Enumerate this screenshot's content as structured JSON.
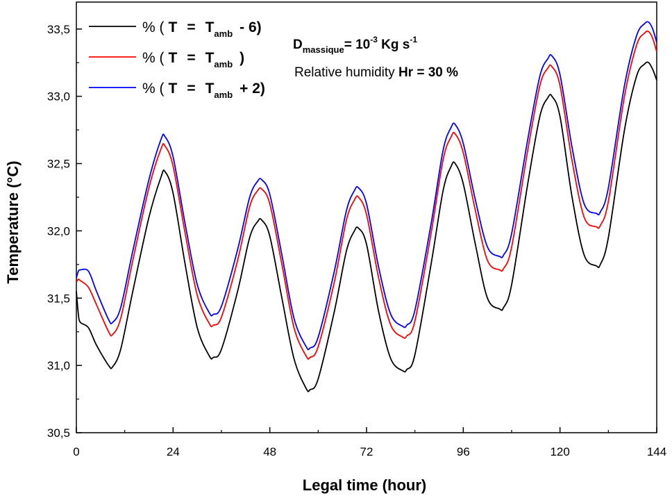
{
  "chart_data": {
    "type": "line",
    "title": "",
    "xlabel": "Legal time (hour)",
    "ylabel": "Temperature (°C)",
    "xlim": [
      0,
      144
    ],
    "ylim": [
      30.5,
      33.7
    ],
    "x_ticks": [
      "0",
      "24",
      "48",
      "72",
      "96",
      "120",
      "144"
    ],
    "x_tick_values": [
      0,
      24,
      48,
      72,
      96,
      120,
      144
    ],
    "y_ticks": [
      "30,5",
      "31,0",
      "31,5",
      "32,0",
      "32,5",
      "33,0",
      "33,5"
    ],
    "y_tick_values": [
      30.5,
      31.0,
      31.5,
      32.0,
      32.5,
      33.0,
      33.5
    ],
    "grid": false,
    "legend_position": "top-left",
    "series": [
      {
        "name": "% (T = Tamb - 6)",
        "legend": {
          "prefix": "% (",
          "var": "T",
          "eq": "=",
          "base": "T",
          "sub": "amb",
          "suffix": "- 6)"
        },
        "color": "#000000",
        "x": [
          0,
          0.5,
          1,
          3,
          5,
          8,
          9,
          11,
          14,
          18,
          21,
          22,
          24,
          27,
          30,
          33,
          34,
          36,
          40,
          43,
          45,
          46,
          48,
          51,
          54,
          57,
          58,
          60,
          64,
          67,
          69,
          70,
          72,
          75,
          78,
          81,
          82,
          84,
          88,
          91,
          93,
          94,
          96,
          99,
          102,
          105,
          106,
          108,
          112,
          115,
          117,
          118,
          120,
          123,
          126,
          129,
          130,
          132,
          136,
          139,
          141,
          142,
          143,
          144
        ],
        "y": [
          31.55,
          31.38,
          31.32,
          31.28,
          31.15,
          31.0,
          30.99,
          31.12,
          31.55,
          32.1,
          32.4,
          32.44,
          32.28,
          31.75,
          31.28,
          31.07,
          31.06,
          31.12,
          31.55,
          31.95,
          32.07,
          32.08,
          31.96,
          31.5,
          31.05,
          30.83,
          30.82,
          30.9,
          31.4,
          31.85,
          32.0,
          32.02,
          31.9,
          31.4,
          31.05,
          30.96,
          30.97,
          31.08,
          31.75,
          32.3,
          32.48,
          32.5,
          32.35,
          31.9,
          31.5,
          31.42,
          31.43,
          31.6,
          32.35,
          32.85,
          32.99,
          33.0,
          32.85,
          32.25,
          31.82,
          31.74,
          31.75,
          31.95,
          32.75,
          33.15,
          33.24,
          33.25,
          33.2,
          33.12
        ]
      },
      {
        "name": "% (T = Tamb )",
        "legend": {
          "prefix": "% (",
          "var": "T",
          "eq": "=",
          "base": "T",
          "sub": "amb",
          "suffix": ")"
        },
        "color": "#ff0000",
        "x": [
          0,
          0.5,
          1,
          3,
          5,
          8,
          9,
          11,
          14,
          18,
          21,
          22,
          24,
          27,
          30,
          33,
          34,
          36,
          40,
          43,
          45,
          46,
          48,
          51,
          54,
          57,
          58,
          60,
          64,
          67,
          69,
          70,
          72,
          75,
          78,
          81,
          82,
          84,
          88,
          91,
          93,
          94,
          96,
          99,
          102,
          105,
          106,
          108,
          112,
          115,
          117,
          118,
          120,
          123,
          126,
          129,
          130,
          132,
          136,
          139,
          141,
          142,
          143,
          144
        ],
        "y": [
          31.62,
          31.64,
          31.63,
          31.58,
          31.45,
          31.25,
          31.23,
          31.35,
          31.78,
          32.32,
          32.61,
          32.63,
          32.48,
          31.98,
          31.52,
          31.31,
          31.3,
          31.36,
          31.78,
          32.18,
          32.3,
          32.31,
          32.2,
          31.75,
          31.28,
          31.07,
          31.06,
          31.14,
          31.62,
          32.08,
          32.23,
          32.25,
          32.12,
          31.65,
          31.3,
          31.21,
          31.22,
          31.33,
          31.98,
          32.53,
          32.7,
          32.72,
          32.58,
          32.15,
          31.78,
          31.71,
          31.72,
          31.88,
          32.6,
          33.08,
          33.21,
          33.22,
          33.08,
          32.52,
          32.1,
          32.03,
          32.04,
          32.22,
          33.0,
          33.38,
          33.47,
          33.48,
          33.43,
          33.33
        ]
      },
      {
        "name": "% (T = Tamb + 2)",
        "legend": {
          "prefix": "% (",
          "var": "T",
          "eq": "=",
          "base": "T",
          "sub": "amb",
          "suffix": "+ 2)"
        },
        "color": "#0000ff",
        "x": [
          0,
          0.5,
          1,
          3,
          5,
          8,
          9,
          11,
          14,
          18,
          21,
          22,
          24,
          27,
          30,
          33,
          34,
          36,
          40,
          43,
          45,
          46,
          48,
          51,
          54,
          57,
          58,
          60,
          64,
          67,
          69,
          70,
          72,
          75,
          78,
          81,
          82,
          84,
          88,
          91,
          93,
          94,
          96,
          99,
          102,
          105,
          106,
          108,
          112,
          115,
          117,
          118,
          120,
          123,
          126,
          129,
          130,
          132,
          136,
          139,
          141,
          142,
          143,
          144
        ],
        "y": [
          31.65,
          31.7,
          31.71,
          31.7,
          31.55,
          31.34,
          31.32,
          31.43,
          31.85,
          32.38,
          32.68,
          32.7,
          32.55,
          32.05,
          31.6,
          31.39,
          31.38,
          31.44,
          31.86,
          32.25,
          32.37,
          32.38,
          32.27,
          31.82,
          31.35,
          31.14,
          31.13,
          31.21,
          31.7,
          32.15,
          32.3,
          32.32,
          32.2,
          31.73,
          31.38,
          31.29,
          31.3,
          31.41,
          32.05,
          32.6,
          32.77,
          32.79,
          32.65,
          32.23,
          31.88,
          31.81,
          31.82,
          31.98,
          32.68,
          33.15,
          33.28,
          33.3,
          33.16,
          32.62,
          32.2,
          32.13,
          32.14,
          32.32,
          33.08,
          33.45,
          33.54,
          33.55,
          33.5,
          33.4
        ]
      }
    ],
    "annotations": {
      "flow_label": {
        "base": "D",
        "sub": "massique",
        "eq": "= 10",
        "exp": "-3",
        "unit": " Kg s",
        "unit_exp": "-1"
      },
      "humidity_label": {
        "text": "Relative humidity ",
        "value": "Hr = 30 %"
      }
    }
  }
}
